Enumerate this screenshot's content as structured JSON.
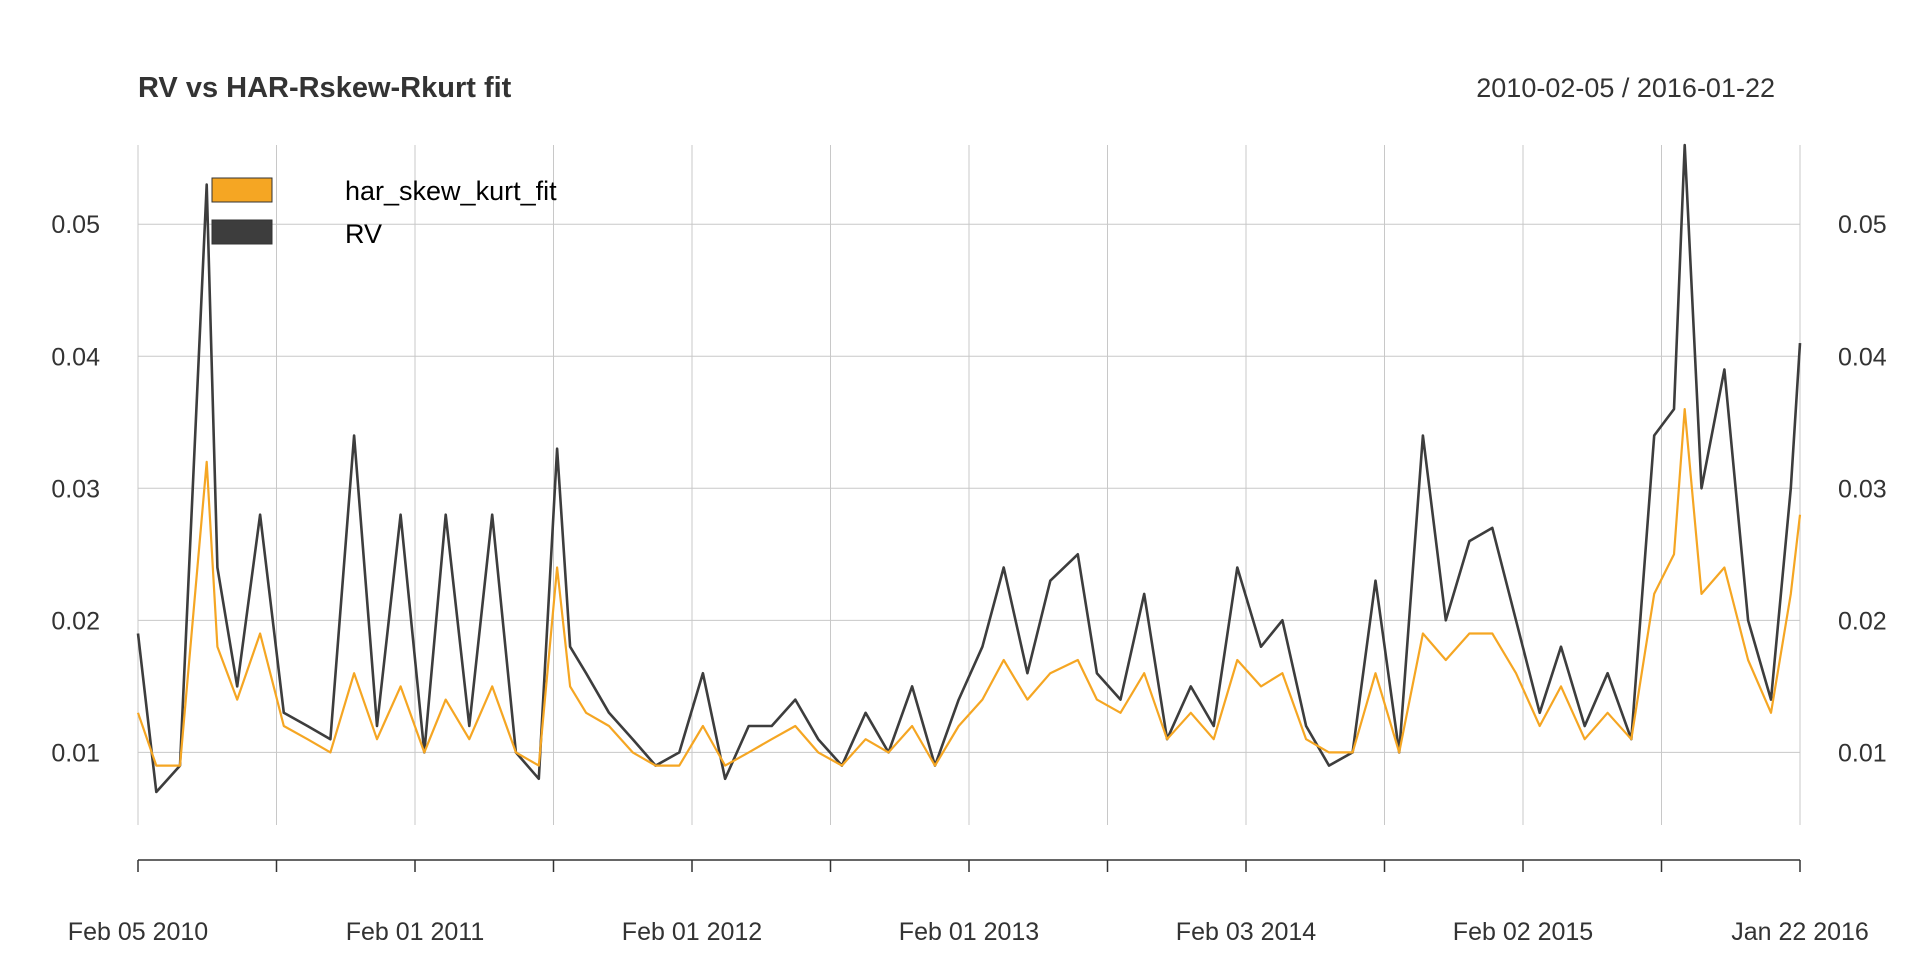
{
  "chart_data": {
    "type": "line",
    "title": "RV vs HAR-Rskew-Rkurt fit",
    "subtitle": "2010-02-05 / 2016-01-22",
    "xlabel": "",
    "ylabel": "",
    "x_range": [
      "2010-02-05",
      "2016-01-22"
    ],
    "x_tick_labels": [
      "Feb 05 2010",
      "Feb 01 2011",
      "Feb 01 2012",
      "Feb 01 2013",
      "Feb 03 2014",
      "Feb 02 2015",
      "Jan 22 2016"
    ],
    "y_tick_labels": [
      "0.01",
      "0.02",
      "0.03",
      "0.04",
      "0.05"
    ],
    "ylim": [
      0.0045,
      0.056
    ],
    "grid": true,
    "legend_position": "top-left",
    "colors": {
      "RV": "#3d3d3d",
      "har_skew_kurt_fit": "#f5a623",
      "grid": "#c8c8c8",
      "axis": "#333333"
    },
    "series": [
      {
        "name": "RV",
        "x": [
          "2010-02-05",
          "2010-03-01",
          "2010-04-01",
          "2010-05-06",
          "2010-05-20",
          "2010-06-15",
          "2010-07-15",
          "2010-08-15",
          "2010-09-15",
          "2010-10-15",
          "2010-11-15",
          "2010-12-15",
          "2011-01-15",
          "2011-02-15",
          "2011-03-15",
          "2011-04-15",
          "2011-05-15",
          "2011-06-15",
          "2011-07-15",
          "2011-08-08",
          "2011-08-25",
          "2011-09-15",
          "2011-10-15",
          "2011-11-15",
          "2011-12-15",
          "2012-01-15",
          "2012-02-15",
          "2012-03-15",
          "2012-04-15",
          "2012-05-15",
          "2012-06-15",
          "2012-07-15",
          "2012-08-15",
          "2012-09-15",
          "2012-10-15",
          "2012-11-15",
          "2012-12-15",
          "2013-01-15",
          "2013-02-15",
          "2013-03-15",
          "2013-04-15",
          "2013-05-15",
          "2013-06-20",
          "2013-07-15",
          "2013-08-15",
          "2013-09-15",
          "2013-10-15",
          "2013-11-15",
          "2013-12-15",
          "2014-01-15",
          "2014-02-15",
          "2014-03-15",
          "2014-04-15",
          "2014-05-15",
          "2014-06-15",
          "2014-07-15",
          "2014-08-15",
          "2014-09-15",
          "2014-10-15",
          "2014-11-15",
          "2014-12-15",
          "2015-01-15",
          "2015-02-15",
          "2015-03-15",
          "2015-04-15",
          "2015-05-15",
          "2015-06-15",
          "2015-07-15",
          "2015-08-10",
          "2015-08-24",
          "2015-09-15",
          "2015-10-15",
          "2015-11-15",
          "2015-12-15",
          "2016-01-10",
          "2016-01-22"
        ],
        "values": [
          0.019,
          0.007,
          0.009,
          0.053,
          0.024,
          0.015,
          0.028,
          0.013,
          0.012,
          0.011,
          0.034,
          0.012,
          0.028,
          0.01,
          0.028,
          0.012,
          0.028,
          0.01,
          0.008,
          0.033,
          0.018,
          0.016,
          0.013,
          0.011,
          0.009,
          0.01,
          0.016,
          0.008,
          0.012,
          0.012,
          0.014,
          0.011,
          0.009,
          0.013,
          0.01,
          0.015,
          0.009,
          0.014,
          0.018,
          0.024,
          0.016,
          0.023,
          0.025,
          0.016,
          0.014,
          0.022,
          0.011,
          0.015,
          0.012,
          0.024,
          0.018,
          0.02,
          0.012,
          0.009,
          0.01,
          0.023,
          0.01,
          0.034,
          0.02,
          0.026,
          0.027,
          0.02,
          0.013,
          0.018,
          0.012,
          0.016,
          0.011,
          0.034,
          0.036,
          0.056,
          0.03,
          0.039,
          0.02,
          0.014,
          0.03,
          0.041
        ]
      },
      {
        "name": "har_skew_kurt_fit",
        "x": [
          "2010-02-05",
          "2010-03-01",
          "2010-04-01",
          "2010-05-06",
          "2010-05-20",
          "2010-06-15",
          "2010-07-15",
          "2010-08-15",
          "2010-09-15",
          "2010-10-15",
          "2010-11-15",
          "2010-12-15",
          "2011-01-15",
          "2011-02-15",
          "2011-03-15",
          "2011-04-15",
          "2011-05-15",
          "2011-06-15",
          "2011-07-15",
          "2011-08-08",
          "2011-08-25",
          "2011-09-15",
          "2011-10-15",
          "2011-11-15",
          "2011-12-15",
          "2012-01-15",
          "2012-02-15",
          "2012-03-15",
          "2012-04-15",
          "2012-05-15",
          "2012-06-15",
          "2012-07-15",
          "2012-08-15",
          "2012-09-15",
          "2012-10-15",
          "2012-11-15",
          "2012-12-15",
          "2013-01-15",
          "2013-02-15",
          "2013-03-15",
          "2013-04-15",
          "2013-05-15",
          "2013-06-20",
          "2013-07-15",
          "2013-08-15",
          "2013-09-15",
          "2013-10-15",
          "2013-11-15",
          "2013-12-15",
          "2014-01-15",
          "2014-02-15",
          "2014-03-15",
          "2014-04-15",
          "2014-05-15",
          "2014-06-15",
          "2014-07-15",
          "2014-08-15",
          "2014-09-15",
          "2014-10-15",
          "2014-11-15",
          "2014-12-15",
          "2015-01-15",
          "2015-02-15",
          "2015-03-15",
          "2015-04-15",
          "2015-05-15",
          "2015-06-15",
          "2015-07-15",
          "2015-08-10",
          "2015-08-24",
          "2015-09-15",
          "2015-10-15",
          "2015-11-15",
          "2015-12-15",
          "2016-01-10",
          "2016-01-22"
        ],
        "values": [
          0.013,
          0.009,
          0.009,
          0.032,
          0.018,
          0.014,
          0.019,
          0.012,
          0.011,
          0.01,
          0.016,
          0.011,
          0.015,
          0.01,
          0.014,
          0.011,
          0.015,
          0.01,
          0.009,
          0.024,
          0.015,
          0.013,
          0.012,
          0.01,
          0.009,
          0.009,
          0.012,
          0.009,
          0.01,
          0.011,
          0.012,
          0.01,
          0.009,
          0.011,
          0.01,
          0.012,
          0.009,
          0.012,
          0.014,
          0.017,
          0.014,
          0.016,
          0.017,
          0.014,
          0.013,
          0.016,
          0.011,
          0.013,
          0.011,
          0.017,
          0.015,
          0.016,
          0.011,
          0.01,
          0.01,
          0.016,
          0.01,
          0.019,
          0.017,
          0.019,
          0.019,
          0.016,
          0.012,
          0.015,
          0.011,
          0.013,
          0.011,
          0.022,
          0.025,
          0.036,
          0.022,
          0.024,
          0.017,
          0.013,
          0.022,
          0.028
        ]
      }
    ]
  }
}
